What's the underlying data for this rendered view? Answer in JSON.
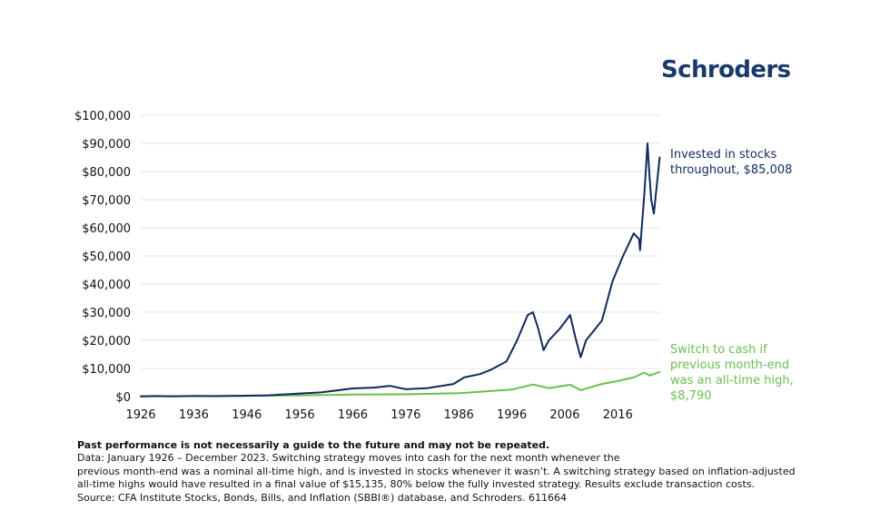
{
  "brand": {
    "name": "Schroders",
    "color": "#1b3a6b"
  },
  "colors": {
    "invested": "#0f2a5c",
    "switch": "#6abf4b",
    "grid": "#e6e6e6",
    "text": "#111111"
  },
  "chart_data": {
    "type": "line",
    "title": "",
    "xlabel": "",
    "ylabel": "",
    "xlim": [
      1926,
      2024
    ],
    "ylim": [
      0,
      100000
    ],
    "yticks": [
      0,
      10000,
      20000,
      30000,
      40000,
      50000,
      60000,
      70000,
      80000,
      90000,
      100000
    ],
    "ytick_labels": [
      "$0",
      "$10,000",
      "$20,000",
      "$30,000",
      "$40,000",
      "$50,000",
      "$60,000",
      "$70,000",
      "$80,000",
      "$90,000",
      "$100,000"
    ],
    "xticks": [
      1926,
      1936,
      1946,
      1956,
      1966,
      1976,
      1986,
      1996,
      2006,
      2016
    ],
    "xtick_labels": [
      "1926",
      "1936",
      "1946",
      "1956",
      "1966",
      "1976",
      "1986",
      "1996",
      "2006",
      "2016"
    ],
    "grid": true,
    "series": [
      {
        "name": "Invested in stocks throughout",
        "label_lines": [
          "Invested in stocks",
          "throughout, $85,008"
        ],
        "final_value": 85008,
        "color": "#0f2a5c",
        "x": [
          1926,
          1929,
          1932,
          1936,
          1940,
          1945,
          1950,
          1956,
          1960,
          1966,
          1970,
          1973,
          1976,
          1980,
          1985,
          1987,
          1990,
          1992,
          1995,
          1997,
          1999,
          2000,
          2001,
          2002,
          2003,
          2005,
          2007,
          2008,
          2009,
          2010,
          2013,
          2015,
          2017,
          2018,
          2019,
          2020,
          2020.2,
          2021,
          2021.6,
          2022,
          2022.3,
          2022.8,
          2023.4,
          2023.9
        ],
        "y": [
          100,
          200,
          80,
          180,
          160,
          280,
          450,
          1100,
          1500,
          2900,
          3200,
          3800,
          2600,
          3000,
          4500,
          6800,
          8000,
          9500,
          12500,
          20000,
          29000,
          30000,
          24000,
          16500,
          20000,
          24000,
          29000,
          21000,
          14000,
          20000,
          27000,
          41000,
          50000,
          54000,
          58000,
          56000,
          52000,
          72000,
          90000,
          78000,
          70000,
          65000,
          76000,
          85008
        ]
      },
      {
        "name": "Switch to cash if previous month-end was an all-time high",
        "label_lines": [
          "Switch to cash if",
          "previous month-end",
          "was an all-time high,",
          "$8,790"
        ],
        "final_value": 8790,
        "color": "#6abf4b",
        "x": [
          1926,
          1936,
          1946,
          1956,
          1966,
          1976,
          1986,
          1996,
          2000,
          2003,
          2007,
          2009,
          2013,
          2016,
          2019,
          2021,
          2022,
          2023.9
        ],
        "y": [
          100,
          180,
          250,
          450,
          700,
          800,
          1200,
          2500,
          4300,
          3000,
          4200,
          2300,
          4500,
          5500,
          6800,
          8500,
          7500,
          8790
        ]
      }
    ]
  },
  "footnote": {
    "bold_line": "Past performance is not necessarily a guide to the future and may not be repeated.",
    "lines": [
      "Data: January 1926 – December 2023. Switching strategy moves into cash for the next month whenever the",
      "previous month-end was a nominal all-time high, and is invested in stocks whenever it wasn’t. A switching strategy based on inflation-adjusted",
      "all-time highs would have resulted in a final value of $15,135, 80% below the fully invested strategy. Results exclude transaction costs.",
      "Source: CFA Institute Stocks, Bonds, Bills, and Inflation (SBBI®) database, and Schroders. 611664"
    ]
  }
}
